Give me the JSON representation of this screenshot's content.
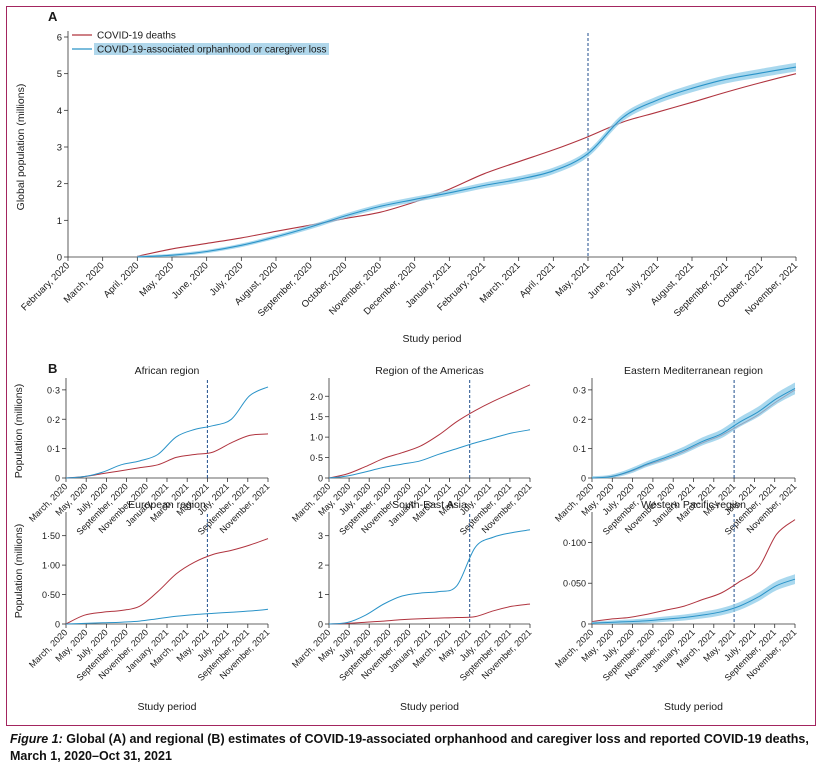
{
  "colors": {
    "deaths": "#b0343f",
    "orphanhood": "#2a93c8",
    "orphanhood_band": "#8ccbe8",
    "legend_highlight": "#9ccde6",
    "frame": "#a3255f",
    "divider": "#1f4e8c"
  },
  "caption": {
    "label": "Figure 1:",
    "text": "Global (A) and regional (B) estimates of COVID-19-associated orphanhood and caregiver loss and reported COVID-19 deaths, March 1, 2020–Oct 31, 2021"
  },
  "chart_data": [
    {
      "panel": "A",
      "type": "line",
      "title": "",
      "xlabel": "Study period",
      "ylabel": "Global population (millions)",
      "ylim": [
        0,
        6
      ],
      "yticks": [
        "0",
        "1",
        "2",
        "3",
        "4",
        "5",
        "6"
      ],
      "x_tick_labels": [
        "February, 2020",
        "March, 2020",
        "April, 2020",
        "May, 2020",
        "June, 2020",
        "July, 2020",
        "August, 2020",
        "September, 2020",
        "October, 2020",
        "November, 2020",
        "December, 2020",
        "January, 2021",
        "February, 2021",
        "March, 2021",
        "April, 2021",
        "May, 2021",
        "June, 2021",
        "July, 2021",
        "August, 2021",
        "September, 2021",
        "October, 2021",
        "November, 2021"
      ],
      "divider_label": "May, 2021",
      "legend": [
        "COVID-19 deaths",
        "COVID-19-associated orphanhood or caregiver loss"
      ],
      "series": [
        {
          "name": "COVID-19 deaths",
          "x": [
            "April, 2020",
            "May, 2020",
            "June, 2020",
            "July, 2020",
            "August, 2020",
            "September, 2020",
            "October, 2020",
            "November, 2020",
            "December, 2020",
            "January, 2021",
            "February, 2021",
            "March, 2021",
            "April, 2021",
            "May, 2021",
            "June, 2021",
            "July, 2021",
            "August, 2021",
            "September, 2021",
            "October, 2021",
            "November, 2021"
          ],
          "values": [
            0.02,
            0.22,
            0.37,
            0.52,
            0.7,
            0.87,
            1.05,
            1.22,
            1.5,
            1.85,
            2.27,
            2.6,
            2.92,
            3.28,
            3.68,
            3.95,
            4.22,
            4.5,
            4.76,
            5.0
          ]
        },
        {
          "name": "COVID-19-associated orphanhood or caregiver loss",
          "x": [
            "April, 2020",
            "May, 2020",
            "June, 2020",
            "July, 2020",
            "August, 2020",
            "September, 2020",
            "October, 2020",
            "November, 2020",
            "December, 2020",
            "January, 2021",
            "February, 2021",
            "March, 2021",
            "April, 2021",
            "May, 2021",
            "June, 2021",
            "July, 2021",
            "August, 2021",
            "September, 2021",
            "October, 2021",
            "November, 2021"
          ],
          "values": [
            0.0,
            0.05,
            0.15,
            0.32,
            0.55,
            0.82,
            1.12,
            1.38,
            1.57,
            1.75,
            1.95,
            2.12,
            2.35,
            2.82,
            3.8,
            4.28,
            4.6,
            4.85,
            5.02,
            5.18
          ],
          "band": 0.12
        }
      ]
    },
    {
      "panel": "B",
      "title": "African region",
      "type": "line",
      "xlabel": "Study period",
      "ylabel": "Population (millions)",
      "ylim": [
        0,
        0.32
      ],
      "yticks": [
        "0",
        "0·1",
        "0·2",
        "0·3"
      ],
      "x_tick_labels": [
        "March, 2020",
        "May, 2020",
        "July, 2020",
        "September, 2020",
        "November, 2020",
        "January, 2021",
        "March, 2021",
        "May, 2021",
        "July, 2021",
        "September, 2021",
        "November, 2021"
      ],
      "series": [
        {
          "name": "COVID-19 deaths",
          "values": [
            0,
            0.005,
            0.015,
            0.025,
            0.035,
            0.045,
            0.07,
            0.08,
            0.088,
            0.12,
            0.145,
            0.15
          ]
        },
        {
          "name": "COVID-19-associated orphanhood or caregiver loss",
          "values": [
            0,
            0.005,
            0.02,
            0.045,
            0.058,
            0.08,
            0.14,
            0.165,
            0.178,
            0.2,
            0.28,
            0.31
          ]
        }
      ]
    },
    {
      "panel": "B",
      "title": "Region of the Americas",
      "type": "line",
      "xlabel": "Study period",
      "ylabel": "Population (millions)",
      "ylim": [
        0,
        2.3
      ],
      "yticks": [
        "0",
        "0·5",
        "1·0",
        "1·5",
        "2·0"
      ],
      "x_tick_labels": [
        "March, 2020",
        "May, 2020",
        "July, 2020",
        "September, 2020",
        "November, 2020",
        "January, 2021",
        "March, 2021",
        "May, 2021",
        "July, 2021",
        "September, 2021",
        "November, 2021"
      ],
      "series": [
        {
          "name": "COVID-19 deaths",
          "values": [
            0,
            0.1,
            0.28,
            0.48,
            0.62,
            0.78,
            1.05,
            1.38,
            1.65,
            1.88,
            2.08,
            2.28
          ]
        },
        {
          "name": "COVID-19-associated orphanhood or caregiver loss",
          "values": [
            0,
            0.05,
            0.15,
            0.26,
            0.34,
            0.42,
            0.58,
            0.72,
            0.86,
            0.98,
            1.1,
            1.18
          ]
        }
      ]
    },
    {
      "panel": "B",
      "title": "Eastern Mediterranean region",
      "type": "line",
      "xlabel": "Study period",
      "ylabel": "Population (millions)",
      "ylim": [
        0,
        0.32
      ],
      "yticks": [
        "0",
        "0·1",
        "0·2",
        "0·3"
      ],
      "x_tick_labels": [
        "March, 2020",
        "May, 2020",
        "July, 2020",
        "September, 2020",
        "November, 2020",
        "January, 2021",
        "March, 2021",
        "May, 2021",
        "July, 2021",
        "September, 2021",
        "November, 2021"
      ],
      "series": [
        {
          "name": "COVID-19 deaths",
          "values": [
            0,
            0.005,
            0.02,
            0.045,
            0.065,
            0.09,
            0.12,
            0.145,
            0.18,
            0.215,
            0.26,
            0.3
          ]
        },
        {
          "name": "COVID-19-associated orphanhood or caregiver loss",
          "values": [
            0,
            0.004,
            0.022,
            0.048,
            0.07,
            0.095,
            0.125,
            0.15,
            0.19,
            0.225,
            0.27,
            0.305
          ],
          "band": 0.02
        }
      ]
    },
    {
      "panel": "B",
      "title": "European region",
      "type": "line",
      "xlabel": "Study period",
      "ylabel": "Population (millions)",
      "ylim": [
        0,
        1.8
      ],
      "yticks": [
        "0",
        "0·50",
        "1·00",
        "1·50"
      ],
      "x_tick_labels": [
        "March, 2020",
        "May, 2020",
        "July, 2020",
        "September, 2020",
        "November, 2020",
        "January, 2021",
        "March, 2021",
        "May, 2021",
        "July, 2021",
        "September, 2021",
        "November, 2021"
      ],
      "series": [
        {
          "name": "COVID-19 deaths",
          "values": [
            0,
            0.15,
            0.2,
            0.23,
            0.3,
            0.55,
            0.85,
            1.05,
            1.18,
            1.25,
            1.34,
            1.45
          ]
        },
        {
          "name": "COVID-19-associated orphanhood or caregiver loss",
          "values": [
            0,
            0.01,
            0.02,
            0.03,
            0.05,
            0.09,
            0.13,
            0.16,
            0.18,
            0.2,
            0.22,
            0.25
          ]
        }
      ]
    },
    {
      "panel": "B",
      "title": "South-East Asia",
      "type": "line",
      "xlabel": "Study period",
      "ylabel": "Population (millions)",
      "ylim": [
        0,
        3.6
      ],
      "yticks": [
        "0",
        "1",
        "2",
        "3"
      ],
      "x_tick_labels": [
        "March, 2020",
        "May, 2020",
        "July, 2020",
        "September, 2020",
        "November, 2020",
        "January, 2021",
        "March, 2021",
        "May, 2021",
        "July, 2021",
        "September, 2021",
        "November, 2021"
      ],
      "series": [
        {
          "name": "COVID-19 deaths",
          "values": [
            0,
            0.02,
            0.06,
            0.1,
            0.15,
            0.18,
            0.2,
            0.22,
            0.25,
            0.45,
            0.6,
            0.68
          ]
        },
        {
          "name": "COVID-19-associated orphanhood or caregiver loss",
          "values": [
            0,
            0.05,
            0.3,
            0.68,
            0.95,
            1.05,
            1.1,
            1.3,
            2.6,
            2.95,
            3.1,
            3.2
          ]
        }
      ]
    },
    {
      "panel": "B",
      "title": "Western Pacific region",
      "type": "line",
      "xlabel": "Study period",
      "ylabel": "Population (millions)",
      "ylim": [
        0,
        0.13
      ],
      "yticks": [
        "0",
        "0·050",
        "0·100"
      ],
      "x_tick_labels": [
        "March, 2020",
        "May, 2020",
        "July, 2020",
        "September, 2020",
        "November, 2020",
        "January, 2021",
        "March, 2021",
        "May, 2021",
        "July, 2021",
        "September, 2021",
        "November, 2021"
      ],
      "series": [
        {
          "name": "COVID-19 deaths",
          "values": [
            0.003,
            0.006,
            0.008,
            0.012,
            0.017,
            0.022,
            0.03,
            0.038,
            0.052,
            0.068,
            0.11,
            0.128
          ]
        },
        {
          "name": "COVID-19-associated orphanhood or caregiver loss",
          "values": [
            0.001,
            0.002,
            0.003,
            0.004,
            0.006,
            0.008,
            0.011,
            0.015,
            0.022,
            0.033,
            0.047,
            0.055
          ],
          "band": 0.006
        }
      ]
    }
  ]
}
